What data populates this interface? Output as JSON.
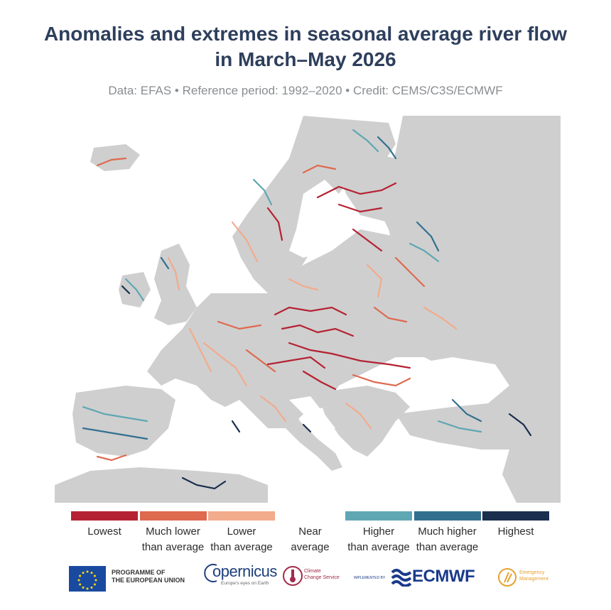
{
  "title_line1": "Anomalies and extremes in seasonal average river flow",
  "title_line2": "in March–May 2026",
  "subtitle": "Data: EFAS • Reference period: 1992–2020 • Credit: CEMS/C3S/ECMWF",
  "legend": [
    {
      "label1": "Lowest",
      "label2": "",
      "color": "#b52233"
    },
    {
      "label1": "Much lower",
      "label2": "than average",
      "color": "#de6a4f"
    },
    {
      "label1": "Lower",
      "label2": "than average",
      "color": "#f2ab8c"
    },
    {
      "label1": "Near",
      "label2": "average",
      "color": ""
    },
    {
      "label1": "Higher",
      "label2": "than average",
      "color": "#5fa7b3"
    },
    {
      "label1": "Much higher",
      "label2": "than average",
      "color": "#33708f"
    },
    {
      "label1": "Highest",
      "label2": "",
      "color": "#1a2f4e"
    }
  ],
  "logos": {
    "eu_line1": "PROGRAMME OF",
    "eu_line2": "THE EUROPEAN UNION",
    "copernicus": "opernicus",
    "copernicus_sub": "Europe's eyes on Earth",
    "c3s_line1": "Climate",
    "c3s_line2": "Change Service",
    "implemented_by": "IMPLEMENTED BY",
    "ecmwf": "ECMWF",
    "em_line1": "Emergency",
    "em_line2": "Management"
  },
  "colors": {
    "land": "#cfcfcf",
    "sea": "#ffffff",
    "title": "#2e3f5c"
  }
}
